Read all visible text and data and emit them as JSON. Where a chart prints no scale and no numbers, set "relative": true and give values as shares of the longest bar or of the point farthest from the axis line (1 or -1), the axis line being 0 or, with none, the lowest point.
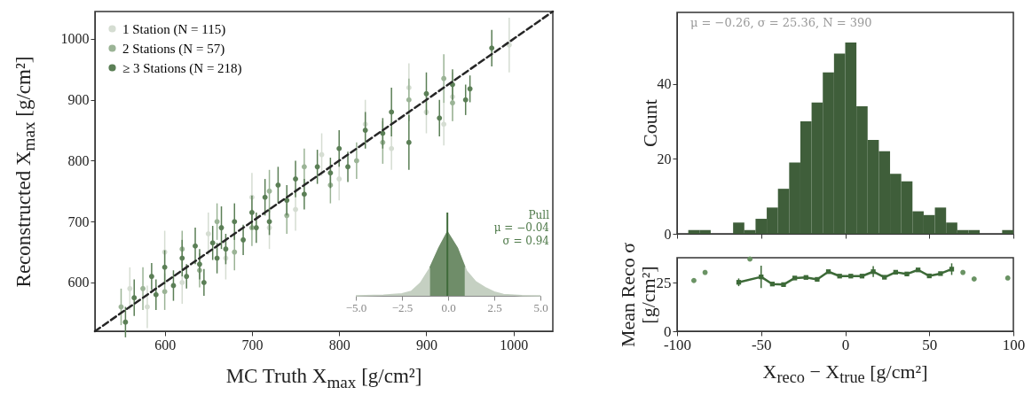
{
  "chart_data": [
    {
      "type": "scatter",
      "xlabel": "MC Truth X$_{max}$ [g/cm²]",
      "ylabel": "Reconstructed X$_{max}$ [g/cm²]",
      "xlim": [
        520,
        1045
      ],
      "ylim": [
        520,
        1045
      ],
      "xticks": [
        600,
        700,
        800,
        900,
        1000
      ],
      "yticks": [
        600,
        700,
        800,
        900,
        1000
      ],
      "grid": false,
      "legend": "top left",
      "marker": "circle",
      "series": [
        {
          "name": "1 Station (N = 115)",
          "color": "#d5ddd2",
          "x": [
            560,
            580,
            600,
            620,
            650,
            670,
            700,
            720,
            750,
            780,
            800,
            830,
            860,
            880,
            900,
            920,
            930,
            995
          ],
          "values": [
            590,
            560,
            650,
            600,
            680,
            640,
            740,
            690,
            720,
            810,
            770,
            860,
            820,
            920,
            880,
            860,
            905,
            990
          ],
          "errors": [
            35,
            35,
            35,
            35,
            35,
            35,
            40,
            35,
            35,
            35,
            35,
            40,
            35,
            40,
            35,
            35,
            40,
            45
          ]
        },
        {
          "name": "2 Stations (N = 57)",
          "color": "#9bb496",
          "x": [
            550,
            575,
            600,
            620,
            640,
            660,
            680,
            700,
            720,
            740,
            760,
            790,
            820,
            850,
            880,
            920,
            930
          ],
          "values": [
            560,
            590,
            585,
            655,
            620,
            700,
            650,
            690,
            750,
            710,
            790,
            760,
            800,
            830,
            900,
            935,
            895
          ],
          "errors": [
            30,
            35,
            30,
            30,
            28,
            30,
            30,
            30,
            35,
            30,
            30,
            30,
            30,
            35,
            35,
            40,
            30
          ]
        },
        {
          "name": "≥ 3 Stations (N = 218)",
          "color": "#5b7f56",
          "x": [
            555,
            565,
            585,
            590,
            600,
            610,
            620,
            625,
            635,
            640,
            645,
            655,
            660,
            665,
            670,
            680,
            690,
            700,
            705,
            715,
            720,
            730,
            740,
            750,
            760,
            775,
            790,
            800,
            810,
            830,
            850,
            860,
            880,
            900,
            915,
            930,
            945,
            950,
            975
          ],
          "values": [
            535,
            575,
            610,
            580,
            625,
            595,
            640,
            610,
            660,
            630,
            600,
            665,
            640,
            690,
            655,
            700,
            670,
            715,
            690,
            740,
            700,
            760,
            735,
            770,
            745,
            790,
            780,
            820,
            790,
            850,
            845,
            880,
            830,
            910,
            870,
            925,
            900,
            918,
            985
          ],
          "errors": [
            25,
            30,
            22,
            25,
            28,
            25,
            30,
            20,
            30,
            25,
            22,
            28,
            25,
            35,
            25,
            30,
            25,
            28,
            25,
            30,
            22,
            30,
            25,
            30,
            25,
            28,
            25,
            30,
            25,
            30,
            25,
            40,
            45,
            35,
            30,
            25,
            25,
            22,
            30
          ]
        },
        {
          "type": "line",
          "color": "#262626",
          "line_style": "dashed",
          "marker": "none",
          "x": [
            520,
            1045
          ],
          "values": [
            520,
            1045
          ]
        }
      ]
    },
    {
      "type": "area",
      "relative": true,
      "xlim": [
        -5,
        5
      ],
      "xticks": [
        {
          "value": -5,
          "label": "−5.0"
        },
        {
          "value": -2.5,
          "label": "−2.5"
        },
        {
          "value": 0,
          "label": "0.0"
        },
        {
          "value": 2.5,
          "label": "2.5"
        },
        {
          "value": 5,
          "label": "5.0"
        }
      ],
      "tick_labels": "x",
      "annotations": [
        "Pull",
        "μ = −0.04",
        "σ = 0.94"
      ],
      "ref_lines": [
        {
          "axis": "x",
          "value": -0.04,
          "color": "#3f6b3a"
        }
      ],
      "series": [
        {
          "color": "#c5d0c2",
          "x": [
            -5,
            -3.5,
            -2.5,
            -2,
            -1.5,
            -1,
            -0.5,
            -0.04,
            0.5,
            1,
            1.5,
            2,
            2.5,
            3,
            4,
            5
          ],
          "values": [
            0,
            0.01,
            0.03,
            0.07,
            0.2,
            0.43,
            0.75,
            1,
            0.75,
            0.39,
            0.22,
            0.13,
            0.06,
            0.02,
            0.005,
            0
          ]
        },
        {
          "color": "#6f8d69",
          "x": [
            -0.98,
            -0.5,
            -0.04,
            0.5,
            0.9
          ],
          "values": [
            0.44,
            0.75,
            1,
            0.75,
            0.45
          ]
        }
      ]
    },
    {
      "type": "histogram",
      "ylabel": "Count",
      "color": "#3f5e3a",
      "xlim": [
        -100,
        100
      ],
      "xticks": [
        -100,
        -50,
        0,
        50,
        100
      ],
      "ylim": [
        0,
        59
      ],
      "yticks": [
        0,
        20,
        40
      ],
      "tick_labels": "y",
      "annotations": [
        "μ = −0.26, σ = 25.36, N = 390"
      ],
      "bins": [
        -100,
        -93.33,
        -86.67,
        -80,
        -73.33,
        -66.67,
        -60,
        -53.33,
        -46.67,
        -40,
        -33.33,
        -26.67,
        -20,
        -13.33,
        -6.67,
        0,
        6.67,
        13.33,
        20,
        26.67,
        33.33,
        40,
        46.67,
        53.33,
        60,
        66.67,
        73.33,
        80,
        86.67,
        93.33,
        100
      ],
      "values": [
        0,
        1,
        1,
        0,
        0,
        3,
        1,
        4,
        7,
        12,
        19,
        30,
        35,
        43,
        48,
        51,
        34,
        25,
        22,
        16,
        14,
        6,
        5,
        7,
        3,
        1,
        1,
        0,
        0,
        1
      ]
    },
    {
      "type": "line",
      "xlabel": "X$_{reco}$ − X$_{true}$ [g/cm²]",
      "ylabel": "Mean Reco σ [g/cm²]",
      "xlim": [
        -100,
        100
      ],
      "xticks": [
        -100,
        -50,
        0,
        50,
        100
      ],
      "ylim": [
        0,
        38
      ],
      "yticks": [
        0,
        25
      ],
      "series": [
        {
          "color": "#3d6a38",
          "marker": "square",
          "x": [
            -63.33,
            -50,
            -43.33,
            -36.67,
            -30,
            -23.33,
            -16.67,
            -10,
            -3.33,
            3.33,
            10,
            16.67,
            23.33,
            30,
            36.67,
            43.33,
            50,
            56.67,
            63.33
          ],
          "values": [
            25.3,
            28.1,
            24.4,
            24.1,
            27.5,
            27.8,
            26.8,
            30.8,
            28.5,
            28.5,
            28.5,
            30.8,
            27.9,
            30.5,
            29.6,
            31.7,
            28.6,
            29.8,
            32.1
          ],
          "errors": [
            2,
            5.8,
            null,
            null,
            null,
            null,
            null,
            null,
            null,
            null,
            null,
            2.8,
            null,
            null,
            null,
            null,
            null,
            null,
            3
          ]
        },
        {
          "type": "scatter",
          "color": "#6a9364",
          "marker": "circle",
          "x": [
            -90,
            -83.33,
            -56.67,
            70,
            76.67,
            96.67
          ],
          "values": [
            26.2,
            30.4,
            37.3,
            30.4,
            27,
            27.5
          ]
        }
      ]
    }
  ]
}
